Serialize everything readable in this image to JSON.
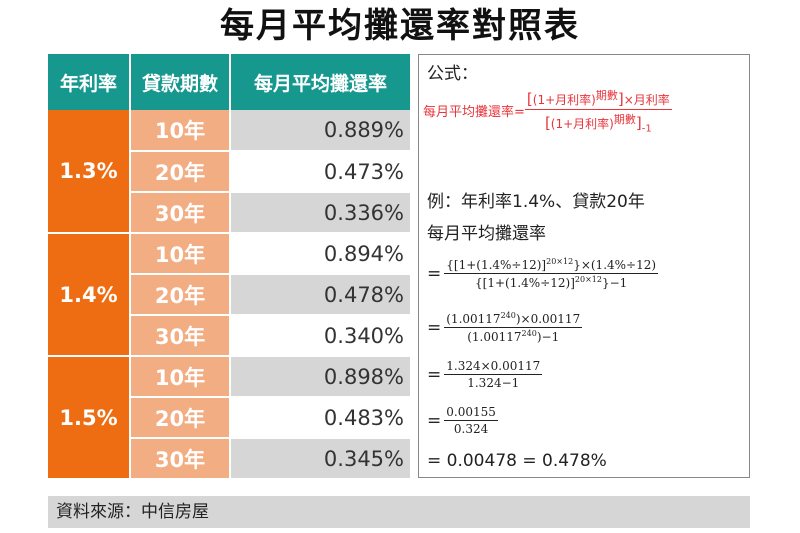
{
  "title": "每月平均攤還率對照表",
  "table": {
    "headers": [
      "年利率",
      "貸款期數",
      "每月平均攤還率"
    ],
    "groups": [
      {
        "rate": "1.3%",
        "rows": [
          {
            "period": "10年",
            "value": "0.889%"
          },
          {
            "period": "20年",
            "value": "0.473%"
          },
          {
            "period": "30年",
            "value": "0.336%"
          }
        ]
      },
      {
        "rate": "1.4%",
        "rows": [
          {
            "period": "10年",
            "value": "0.894%"
          },
          {
            "period": "20年",
            "value": "0.478%"
          },
          {
            "period": "30年",
            "value": "0.340%"
          }
        ]
      },
      {
        "rate": "1.5%",
        "rows": [
          {
            "period": "10年",
            "value": "0.898%"
          },
          {
            "period": "20年",
            "value": "0.483%"
          },
          {
            "period": "30年",
            "value": "0.345%"
          }
        ]
      }
    ]
  },
  "formula": {
    "heading": "公式：",
    "lhs": "每月平均攤還率=",
    "num_a": "(1+月利率)",
    "num_exp": "期數",
    "num_b": "×月利率",
    "den_a": "(1+月利率)",
    "den_exp": "期數",
    "den_b": "-1",
    "example": "例：年利率1.4%、貸款20年",
    "example_sub": "每月平均攤還率",
    "step1_num_a": "{[1+(1.4%÷12)]",
    "step1_num_exp": "20×12",
    "step1_num_b": "}×(1.4%÷12)",
    "step1_den_a": "{[1+(1.4%÷12)]",
    "step1_den_exp": "20×12",
    "step1_den_b": "}−1",
    "step2_num_a": "(1.00117",
    "step2_num_exp": "240",
    "step2_num_b": ")×0.00117",
    "step2_den_a": "(1.00117",
    "step2_den_exp": "240",
    "step2_den_b": ")−1",
    "step3_num": "1.324×0.00117",
    "step3_den": "1.324−1",
    "step4_num": "0.00155",
    "step4_den": "0.324",
    "result": "= 0.00478 = 0.478%",
    "eq": "="
  },
  "source": "資料來源：中信房屋"
}
